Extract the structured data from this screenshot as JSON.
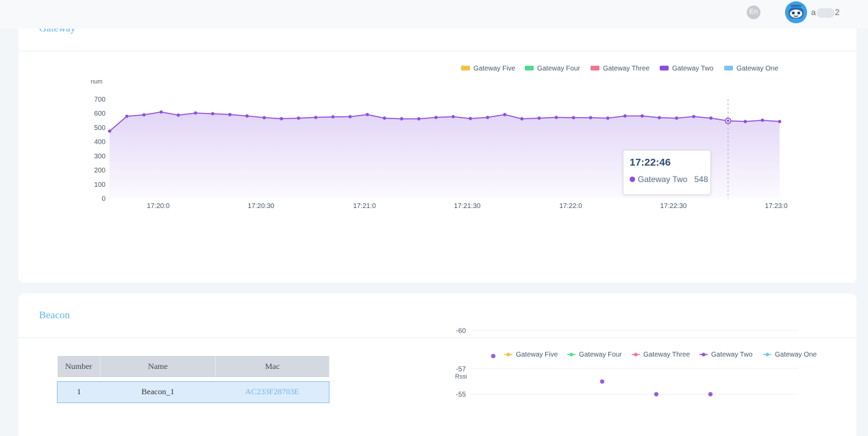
{
  "header": {
    "language": "En",
    "username_start": "a",
    "username_end": "2"
  },
  "gateway_panel": {
    "title": "Gateway",
    "tooltip": {
      "time": "17:22:46",
      "series": "Gateway Two",
      "value": "548"
    }
  },
  "beacon_panel": {
    "title": "Beacon",
    "table": {
      "columns": [
        "Number",
        "Name",
        "Mac"
      ],
      "rows": [
        {
          "number": "1",
          "name": "Beacon_1",
          "mac": "AC233F28703E"
        }
      ]
    }
  },
  "colors": {
    "gateway_five": "#f5c040",
    "gateway_four": "#52d892",
    "gateway_three": "#f27591",
    "gateway_two": "#8e4fd8",
    "gateway_one": "#7ec2f0",
    "title_blue": "#5fb3f0"
  },
  "chart_data": [
    {
      "type": "area",
      "ylabel": "num",
      "ylim": [
        0,
        700
      ],
      "yticks": [
        "700",
        "600",
        "500",
        "400",
        "300",
        "200",
        "100",
        "0"
      ],
      "ytick_values": [
        700,
        600,
        500,
        400,
        300,
        200,
        100,
        0
      ],
      "xticks": [
        "17:20:0",
        "17:20:30",
        "17:21:0",
        "17:21:30",
        "17:22:0",
        "17:22:30",
        "17:23:0"
      ],
      "legend": [
        "Gateway Five",
        "Gateway Four",
        "Gateway Three",
        "Gateway Two",
        "Gateway One"
      ],
      "legend_position": "top-right",
      "highlight_point_time": "17:22:46",
      "series": [
        {
          "name": "Gateway Two",
          "values": [
            475,
            580,
            590,
            610,
            588,
            603,
            598,
            592,
            582,
            570,
            563,
            567,
            572,
            576,
            577,
            592,
            567,
            562,
            562,
            572,
            577,
            564,
            572,
            592,
            562,
            567,
            572,
            570,
            570,
            567,
            582,
            582,
            570,
            567,
            578,
            567,
            548,
            543,
            552,
            543
          ]
        }
      ]
    },
    {
      "type": "scatter",
      "ylabel": "Rssi",
      "yticks": [
        "-55",
        "-57",
        "-60"
      ],
      "ytick_values": [
        -55,
        -57,
        -60
      ],
      "legend": [
        "Gateway Five",
        "Gateway Four",
        "Gateway Three",
        "Gateway Two",
        "Gateway One"
      ],
      "legend_position": "top-right",
      "series": [
        {
          "name": "Gateway Two",
          "values": [
            -58,
            -56,
            -55,
            -55
          ]
        }
      ]
    }
  ]
}
